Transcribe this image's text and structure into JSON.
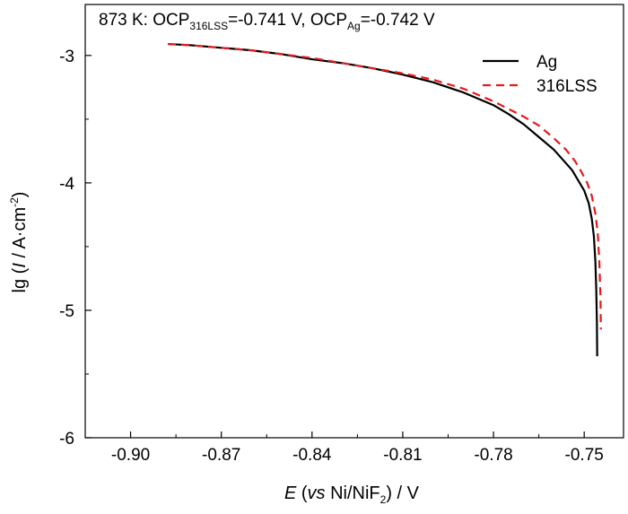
{
  "chart_data": {
    "type": "line",
    "annotation": {
      "prefix": "873 K: OCP",
      "sub1": "316LSS",
      "mid": "=-0.741 V, OCP",
      "sub2": "Ag",
      "suffix": "=-0.742 V"
    },
    "xlabel": {
      "var": "E",
      "open": " (",
      "vs": "vs",
      "rest": " Ni/NiF",
      "sub": "2",
      "close": ") / V"
    },
    "ylabel": {
      "pre": "lg (",
      "var": "I",
      "mid": " / A·cm",
      "sup": "-2",
      "close": ")"
    },
    "xlim": [
      -0.915,
      -0.737
    ],
    "ylim": [
      -6.0,
      -2.6
    ],
    "xticks": [
      -0.9,
      -0.87,
      -0.84,
      -0.81,
      -0.78,
      -0.75
    ],
    "xtick_labels": [
      "-0.90",
      "-0.87",
      "-0.84",
      "-0.81",
      "-0.78",
      "-0.75"
    ],
    "yticks": [
      -6,
      -5,
      -4,
      -3
    ],
    "ytick_labels": [
      "-6",
      "-5",
      "-4",
      "-3"
    ],
    "legend_position": "top-right",
    "series": [
      {
        "name": "Ag",
        "color": "#000000",
        "style": "solid",
        "x": [
          -0.8877,
          -0.88,
          -0.87,
          -0.86,
          -0.85,
          -0.84,
          -0.83,
          -0.82,
          -0.81,
          -0.8,
          -0.79,
          -0.78,
          -0.775,
          -0.77,
          -0.765,
          -0.76,
          -0.757,
          -0.754,
          -0.752,
          -0.75,
          -0.7485,
          -0.7475,
          -0.7468,
          -0.7463,
          -0.746,
          -0.7458,
          -0.7457
        ],
        "y": [
          -2.91,
          -2.92,
          -2.94,
          -2.96,
          -2.99,
          -3.03,
          -3.06,
          -3.1,
          -3.15,
          -3.21,
          -3.29,
          -3.39,
          -3.46,
          -3.54,
          -3.64,
          -3.74,
          -3.82,
          -3.9,
          -3.98,
          -4.06,
          -4.16,
          -4.28,
          -4.42,
          -4.62,
          -4.85,
          -5.1,
          -5.36
        ]
      },
      {
        "name": "316LSS",
        "color": "#e41a1c",
        "style": "dashed",
        "x": [
          -0.8877,
          -0.88,
          -0.87,
          -0.86,
          -0.85,
          -0.84,
          -0.83,
          -0.82,
          -0.81,
          -0.8,
          -0.79,
          -0.78,
          -0.775,
          -0.77,
          -0.765,
          -0.76,
          -0.756,
          -0.753,
          -0.751,
          -0.749,
          -0.7475,
          -0.7463,
          -0.7455,
          -0.745,
          -0.7446,
          -0.7445
        ],
        "y": [
          -2.91,
          -2.92,
          -2.94,
          -2.96,
          -2.99,
          -3.02,
          -3.06,
          -3.1,
          -3.14,
          -3.19,
          -3.26,
          -3.36,
          -3.42,
          -3.48,
          -3.55,
          -3.65,
          -3.74,
          -3.83,
          -3.91,
          -4.0,
          -4.1,
          -4.24,
          -4.4,
          -4.62,
          -4.9,
          -5.15
        ]
      }
    ]
  }
}
